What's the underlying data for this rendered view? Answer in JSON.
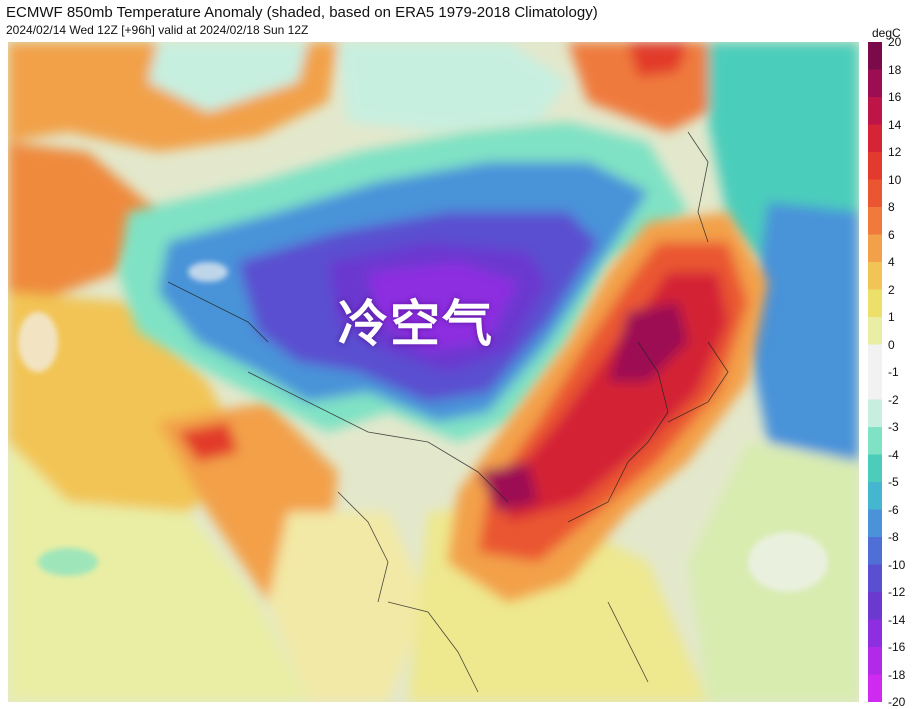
{
  "header": {
    "title": "ECMWF 850mb Temperature Anomaly (shaded, based on ERA5 1979-2018 Climatology)",
    "subtitle": "2024/02/14 Wed 12Z [+96h] valid at 2024/02/18 Sun 12Z"
  },
  "map": {
    "overlay_label": "冷空气"
  },
  "colorbar": {
    "unit": "degC",
    "tick_labels": [
      "20",
      "18",
      "16",
      "14",
      "12",
      "10",
      "8",
      "6",
      "4",
      "2",
      "1",
      "0",
      "-1",
      "-2",
      "-3",
      "-4",
      "-5",
      "-6",
      "-8",
      "-10",
      "-12",
      "-14",
      "-16",
      "-18",
      "-20"
    ],
    "colors": [
      "#7a0a4a",
      "#9c0e52",
      "#bd1548",
      "#d42435",
      "#e23a2c",
      "#ea5632",
      "#ef7a3c",
      "#f3a04a",
      "#f2c455",
      "#ecdf6a",
      "#e9eea4",
      "#f2f2f2",
      "#f2f2f2",
      "#c7efe0",
      "#7fe2c4",
      "#4ccdbb",
      "#45b6cf",
      "#4a93d9",
      "#4f6fd6",
      "#5a4fd0",
      "#6b39cf",
      "#8d2fe0",
      "#b02ae8",
      "#cf2bf0",
      "#ea35f7"
    ]
  }
}
